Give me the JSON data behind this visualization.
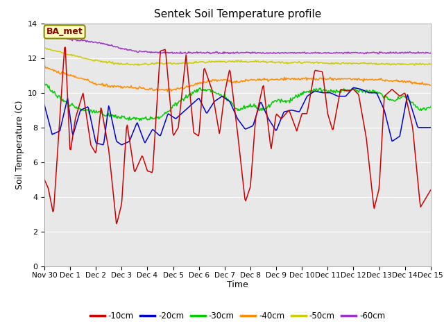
{
  "title": "Sentek Soil Temperature profile",
  "xlabel": "Time",
  "ylabel": "Soil Temperature (C)",
  "ylim": [
    0,
    14
  ],
  "yticks": [
    0,
    2,
    4,
    6,
    8,
    10,
    12,
    14
  ],
  "annotation_text": "BA_met",
  "annotation_color": "#8B0000",
  "annotation_bg": "#FFFFC0",
  "annotation_border": "#8B8B00",
  "bg_color": "#E8E8E8",
  "colors": {
    "-10cm": "#CC0000",
    "-20cm": "#0000CC",
    "-30cm": "#00CC00",
    "-40cm": "#FF8C00",
    "-50cm": "#CCCC00",
    "-60cm": "#9933CC"
  },
  "x_start": 0,
  "x_end": 15.0,
  "xtick_labels": [
    "Nov 30",
    "Dec 1",
    "Dec 2",
    "Dec 3",
    "Dec 4",
    "Dec 5",
    "Dec 6",
    "Dec 7",
    "Dec 8",
    "Dec 9",
    "Dec 10",
    "Dec 11",
    "Dec 12",
    "Dec 13",
    "Dec 14",
    "Dec 15"
  ],
  "xtick_positions": [
    0,
    1,
    2,
    3,
    4,
    5,
    6,
    7,
    8,
    9,
    10,
    11,
    12,
    13,
    14,
    15
  ],
  "grid_color": "#FFFFFF",
  "title_fontsize": 11,
  "axis_label_fontsize": 9,
  "tick_fontsize": 7.5
}
